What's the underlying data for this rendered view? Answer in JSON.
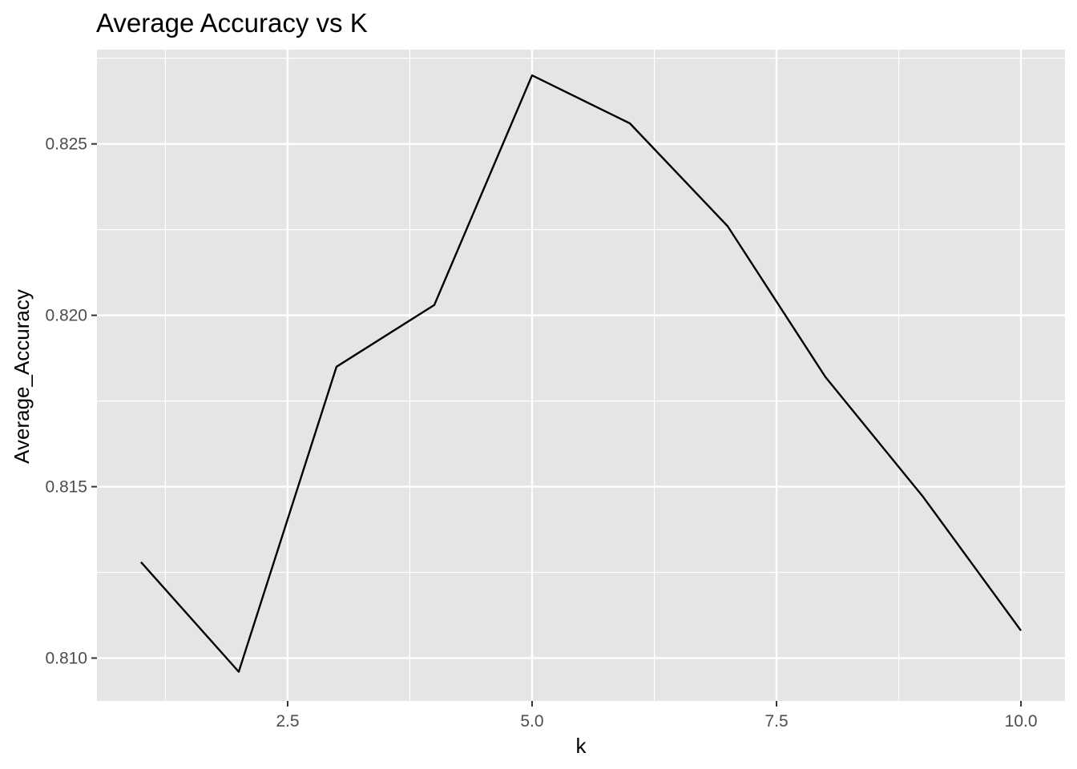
{
  "chart_data": {
    "type": "line",
    "title": "Average Accuracy vs K",
    "xlabel": "k",
    "ylabel": "Average_Accuracy",
    "x": [
      1,
      2,
      3,
      4,
      5,
      6,
      7,
      8,
      9,
      10
    ],
    "series": [
      {
        "values": [
          0.8128,
          0.8096,
          0.8185,
          0.8203,
          0.827,
          0.8256,
          0.8226,
          0.8182,
          0.8147,
          0.8108
        ]
      }
    ],
    "xlim": [
      0.55,
      10.45
    ],
    "ylim": [
      0.80875,
      0.82775
    ],
    "x_ticks": [
      2.5,
      5.0,
      7.5,
      10.0
    ],
    "x_tick_labels": [
      "2.5",
      "5.0",
      "7.5",
      "10.0"
    ],
    "y_ticks": [
      0.81,
      0.815,
      0.82,
      0.825
    ],
    "y_tick_labels": [
      "0.810",
      "0.815",
      "0.820",
      "0.825"
    ],
    "x_minor_ticks": [
      1.25,
      3.75,
      6.25,
      8.75
    ],
    "y_minor_ticks": [
      0.8125,
      0.8175,
      0.8225,
      0.8275
    ],
    "grid": true,
    "legend": "none",
    "colors": {
      "panel_background": "#e5e5e5",
      "grid_line": "#ffffff",
      "series_line": "#000000",
      "tick_label": "#4d4d4d",
      "tick_mark": "#333333"
    }
  }
}
